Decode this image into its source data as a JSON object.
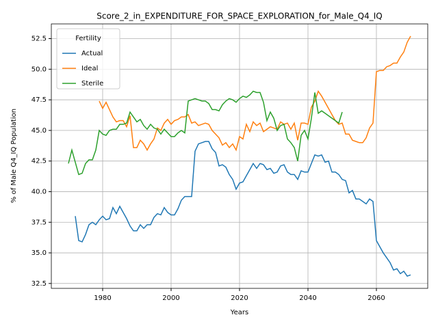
{
  "chart_data": {
    "type": "line",
    "title": "Score_2_in_EXPENDITURE_FOR_SPACE_EXPLORATION_for_Male_Q4_IQ",
    "xlabel": "Years",
    "ylabel": "% of Male Q4_IQ Population",
    "legend_title": "Fertility",
    "legend_loc": "upper left",
    "grid": true,
    "xlim": [
      1965,
      2075
    ],
    "xticks": [
      1980,
      2000,
      2020,
      2040,
      2060
    ],
    "ylim": [
      32.1,
      53.7
    ],
    "yticks": [
      32.5,
      {
        "value": 35,
        "label": "35.0"
      },
      37.5,
      {
        "value": 40,
        "label": "40.0"
      },
      42.5,
      {
        "value": 45,
        "label": "45.0"
      },
      47.5,
      {
        "value": 50,
        "label": "50.0"
      },
      52.5
    ],
    "x": [
      1970,
      1971,
      1972,
      1973,
      1974,
      1975,
      1976,
      1977,
      1978,
      1979,
      1980,
      1981,
      1982,
      1983,
      1984,
      1985,
      1986,
      1987,
      1988,
      1989,
      1990,
      1991,
      1992,
      1993,
      1994,
      1995,
      1996,
      1997,
      1998,
      1999,
      2000,
      2001,
      2002,
      2003,
      2004,
      2005,
      2006,
      2007,
      2008,
      2009,
      2010,
      2011,
      2012,
      2013,
      2014,
      2015,
      2016,
      2017,
      2018,
      2019,
      2020,
      2021,
      2022,
      2023,
      2024,
      2025,
      2026,
      2027,
      2028,
      2029,
      2030,
      2031,
      2032,
      2033,
      2034,
      2035,
      2036,
      2037,
      2038,
      2039,
      2040,
      2041,
      2042,
      2043,
      2044,
      2045,
      2046,
      2047,
      2048,
      2049,
      2050,
      2051,
      2052,
      2053,
      2054,
      2055,
      2056,
      2057,
      2058,
      2059,
      2060,
      2061,
      2062,
      2063,
      2064,
      2065,
      2066,
      2067,
      2068,
      2069,
      2070
    ],
    "series": [
      {
        "name": "Actual",
        "color": "#1f77b4",
        "values": [
          null,
          null,
          38.0,
          36.0,
          35.9,
          36.5,
          37.3,
          37.5,
          37.3,
          37.7,
          38.0,
          37.7,
          37.8,
          38.7,
          38.2,
          38.8,
          38.3,
          37.8,
          37.2,
          36.8,
          36.8,
          37.3,
          37.0,
          37.3,
          37.3,
          37.9,
          38.2,
          38.1,
          38.7,
          38.3,
          38.1,
          38.1,
          38.6,
          39.3,
          39.6,
          39.6,
          39.6,
          43.3,
          43.9,
          44.0,
          44.1,
          44.1,
          43.5,
          43.2,
          42.1,
          42.2,
          42.0,
          41.4,
          41.0,
          40.2,
          40.7,
          40.8,
          41.3,
          41.8,
          42.3,
          41.9,
          42.3,
          42.2,
          41.8,
          41.9,
          41.5,
          41.6,
          42.1,
          42.2,
          41.6,
          41.4,
          41.4,
          41.0,
          41.7,
          41.6,
          41.6,
          42.3,
          43.0,
          42.9,
          43.0,
          42.4,
          42.5,
          41.6,
          41.6,
          41.4,
          41.0,
          40.9,
          39.9,
          40.1,
          39.4,
          39.4,
          39.2,
          39.0,
          39.4,
          39.2,
          36.0,
          35.5,
          35.0,
          34.6,
          34.2,
          33.6,
          33.7,
          33.3,
          33.5,
          33.1,
          33.2
        ]
      },
      {
        "name": "Ideal",
        "color": "#ff7f0e",
        "values": [
          null,
          null,
          null,
          null,
          null,
          null,
          null,
          null,
          null,
          47.4,
          46.8,
          47.3,
          46.7,
          46.1,
          45.7,
          45.8,
          45.8,
          45.3,
          46.2,
          43.6,
          43.6,
          44.2,
          43.9,
          43.4,
          43.9,
          44.3,
          45.2,
          45.0,
          45.6,
          45.9,
          45.5,
          45.8,
          45.9,
          46.1,
          46.1,
          46.3,
          45.6,
          45.7,
          45.4,
          45.5,
          45.6,
          45.5,
          45.0,
          44.7,
          44.4,
          43.8,
          44.0,
          43.6,
          43.9,
          43.4,
          44.5,
          44.3,
          45.5,
          44.9,
          45.7,
          45.4,
          45.6,
          44.9,
          45.1,
          45.3,
          45.2,
          45.1,
          45.7,
          45.5,
          45.6,
          45.1,
          45.6,
          44.2,
          45.6,
          45.6,
          45.5,
          46.9,
          47.4,
          48.2,
          47.8,
          47.3,
          46.8,
          46.3,
          45.8,
          45.5,
          45.6,
          44.7,
          44.7,
          44.2,
          44.1,
          44.0,
          44.0,
          44.4,
          45.2,
          45.6,
          49.8,
          49.9,
          49.9,
          50.2,
          50.3,
          50.5,
          50.5,
          51.0,
          51.4,
          52.2,
          52.7
        ]
      },
      {
        "name": "Sterile",
        "color": "#2ca02c",
        "values": [
          42.3,
          43.4,
          42.4,
          41.4,
          41.5,
          42.3,
          42.6,
          42.6,
          43.4,
          45.0,
          44.7,
          44.6,
          45.0,
          45.1,
          45.1,
          45.5,
          45.5,
          45.6,
          46.5,
          46.1,
          45.7,
          45.9,
          45.4,
          45.1,
          45.5,
          45.2,
          45.1,
          44.7,
          45.1,
          44.8,
          44.5,
          44.5,
          44.8,
          45.0,
          44.8,
          47.4,
          47.5,
          47.6,
          47.5,
          47.4,
          47.4,
          47.2,
          46.7,
          46.7,
          46.6,
          47.1,
          47.4,
          47.6,
          47.5,
          47.3,
          47.6,
          47.8,
          47.7,
          47.9,
          48.2,
          48.1,
          48.1,
          47.3,
          45.8,
          46.5,
          46.0,
          45.0,
          45.4,
          45.5,
          44.3,
          44.0,
          43.6,
          42.5,
          44.6,
          45.0,
          44.3,
          46.0,
          48.1,
          46.4,
          46.6,
          46.4,
          46.2,
          46.0,
          45.8,
          45.6,
          46.5,
          null,
          null,
          null,
          null,
          null,
          null,
          null,
          null,
          null,
          null,
          null,
          null,
          null,
          null,
          null,
          null,
          null,
          null,
          null,
          null
        ]
      }
    ]
  }
}
